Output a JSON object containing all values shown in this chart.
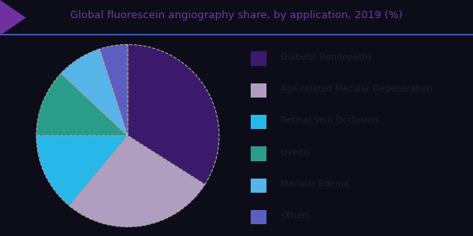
{
  "title": "Global fluorescein angiography share, by application, 2019 (%)",
  "title_color": "#6b3fa0",
  "outer_bg": "#0d0d1a",
  "inner_bg": "#ffffff",
  "slices": [
    {
      "label": "Diabetic Retinopathy",
      "value": 34.0,
      "color": "#3b1a6b"
    },
    {
      "label": "Age-related Macular Degeneration",
      "value": 27.0,
      "color": "#b09ec0"
    },
    {
      "label": "Retinal Vein Occlusion",
      "value": 14.0,
      "color": "#29b6e8"
    },
    {
      "label": "Uveitis",
      "value": 12.0,
      "color": "#2a9d8a"
    },
    {
      "label": "Macular Edema",
      "value": 8.0,
      "color": "#56b4e9"
    },
    {
      "label": "Others",
      "value": 5.0,
      "color": "#5c5fbf"
    }
  ],
  "legend_text_color": "#222222",
  "legend_fontsize": 8,
  "title_fontsize": 9.5,
  "wedge_edge_color": "#aaaaaa",
  "wedge_linestyle": "dashed",
  "accent_line_color": "#3a52cc",
  "triangle_color": "#7030a0"
}
